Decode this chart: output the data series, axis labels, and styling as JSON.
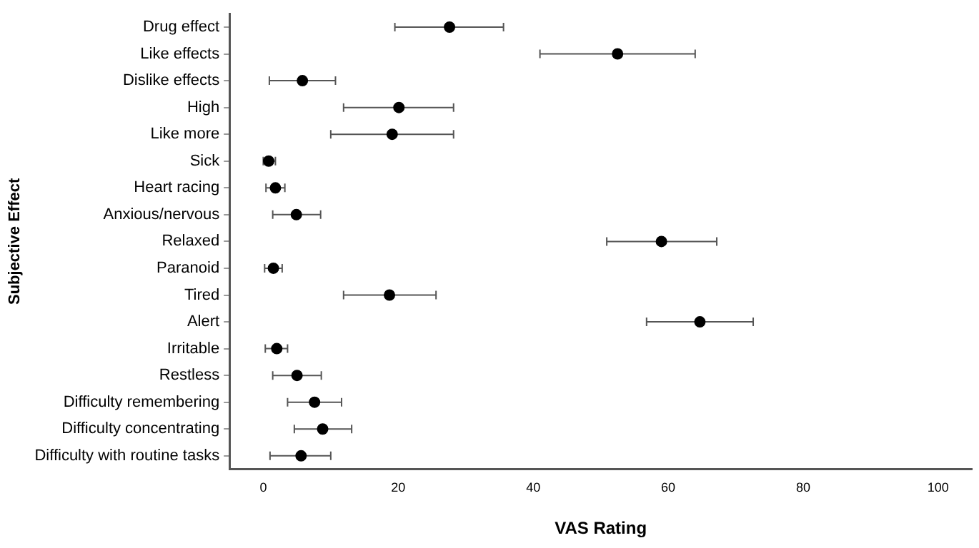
{
  "chart_data": {
    "type": "scatter",
    "orientation": "horizontal",
    "xlabel": "VAS Rating",
    "ylabel": "Subjective Effect",
    "categories": [
      "Drug effect",
      "Like effects",
      "Dislike effects",
      "High",
      "Like more",
      "Sick",
      "Heart racing",
      "Anxious/nervous",
      "Relaxed",
      "Paranoid",
      "Tired",
      "Alert",
      "Irritable",
      "Restless",
      "Difficulty remembering",
      "Difficulty concentrating",
      "Difficulty with routine tasks"
    ],
    "values": [
      27.6,
      52.5,
      5.8,
      20.1,
      19.1,
      0.8,
      1.8,
      4.9,
      59,
      1.5,
      18.7,
      64.7,
      2,
      5,
      7.6,
      8.8,
      5.6
    ],
    "errors": [
      [
        19.5,
        35.6
      ],
      [
        41,
        64
      ],
      [
        0.9,
        10.7
      ],
      [
        11.9,
        28.2
      ],
      [
        10,
        28.2
      ],
      [
        0,
        1.8
      ],
      [
        0.4,
        3.2
      ],
      [
        1.4,
        8.5
      ],
      [
        50.9,
        67.2
      ],
      [
        0.2,
        2.8
      ],
      [
        11.9,
        25.6
      ],
      [
        56.8,
        72.6
      ],
      [
        0.3,
        3.6
      ],
      [
        1.4,
        8.6
      ],
      [
        3.6,
        11.6
      ],
      [
        4.6,
        13.1
      ],
      [
        1,
        10
      ]
    ],
    "color": "#000000",
    "xlim": [
      -5,
      105
    ],
    "xticks": [
      0,
      20,
      40,
      60,
      80,
      100
    ],
    "marker": "circle",
    "grid": false,
    "legend": false
  }
}
